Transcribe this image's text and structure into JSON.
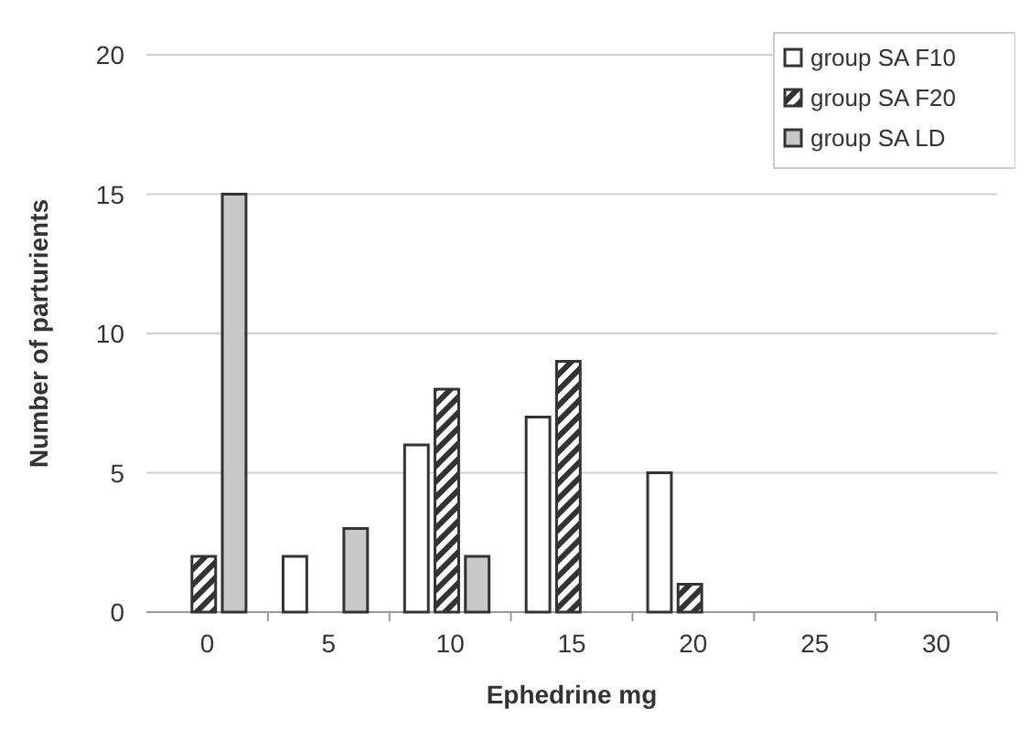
{
  "chart_data": {
    "type": "bar",
    "xlabel": "Ephedrine mg",
    "ylabel": "Number of parturients",
    "categories": [
      "0",
      "5",
      "10",
      "15",
      "20",
      "25",
      "30"
    ],
    "series": [
      {
        "name": "group SA F10",
        "color": "#ffffff",
        "values": [
          0,
          2,
          6,
          7,
          5,
          0,
          0
        ]
      },
      {
        "name": "group SA F20",
        "color": "#333333",
        "values": [
          2,
          0,
          8,
          9,
          1,
          0,
          0
        ]
      },
      {
        "name": "group SA LD",
        "color": "#c8c8c8",
        "values": [
          15,
          3,
          2,
          0,
          0,
          0,
          0
        ]
      }
    ],
    "ylim": [
      0,
      20
    ],
    "yticks": [
      0,
      5,
      10,
      15,
      20
    ],
    "grid": "y",
    "legend": "top right"
  }
}
